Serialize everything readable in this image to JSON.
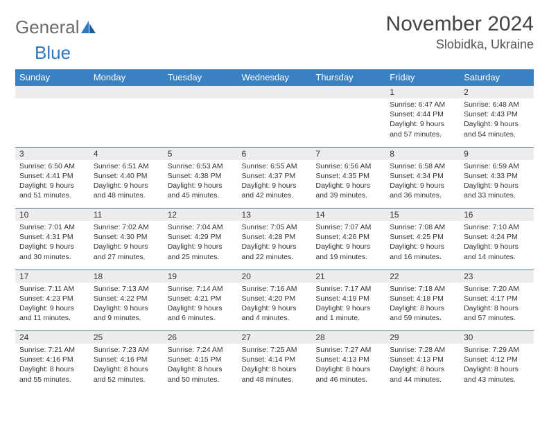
{
  "logo": {
    "text1": "General",
    "text2": "Blue"
  },
  "title": "November 2024",
  "location": "Slobidka, Ukraine",
  "colors": {
    "header_bg": "#3a81c4",
    "header_text": "#ffffff",
    "daynum_bg": "#ededed",
    "border": "#5b7a9b",
    "logo_gray": "#6a6a6a",
    "logo_blue": "#2f78c3"
  },
  "weekdays": [
    "Sunday",
    "Monday",
    "Tuesday",
    "Wednesday",
    "Thursday",
    "Friday",
    "Saturday"
  ],
  "weeks": [
    [
      null,
      null,
      null,
      null,
      null,
      {
        "n": "1",
        "sr": "Sunrise: 6:47 AM",
        "ss": "Sunset: 4:44 PM",
        "d1": "Daylight: 9 hours",
        "d2": "and 57 minutes."
      },
      {
        "n": "2",
        "sr": "Sunrise: 6:48 AM",
        "ss": "Sunset: 4:43 PM",
        "d1": "Daylight: 9 hours",
        "d2": "and 54 minutes."
      }
    ],
    [
      {
        "n": "3",
        "sr": "Sunrise: 6:50 AM",
        "ss": "Sunset: 4:41 PM",
        "d1": "Daylight: 9 hours",
        "d2": "and 51 minutes."
      },
      {
        "n": "4",
        "sr": "Sunrise: 6:51 AM",
        "ss": "Sunset: 4:40 PM",
        "d1": "Daylight: 9 hours",
        "d2": "and 48 minutes."
      },
      {
        "n": "5",
        "sr": "Sunrise: 6:53 AM",
        "ss": "Sunset: 4:38 PM",
        "d1": "Daylight: 9 hours",
        "d2": "and 45 minutes."
      },
      {
        "n": "6",
        "sr": "Sunrise: 6:55 AM",
        "ss": "Sunset: 4:37 PM",
        "d1": "Daylight: 9 hours",
        "d2": "and 42 minutes."
      },
      {
        "n": "7",
        "sr": "Sunrise: 6:56 AM",
        "ss": "Sunset: 4:35 PM",
        "d1": "Daylight: 9 hours",
        "d2": "and 39 minutes."
      },
      {
        "n": "8",
        "sr": "Sunrise: 6:58 AM",
        "ss": "Sunset: 4:34 PM",
        "d1": "Daylight: 9 hours",
        "d2": "and 36 minutes."
      },
      {
        "n": "9",
        "sr": "Sunrise: 6:59 AM",
        "ss": "Sunset: 4:33 PM",
        "d1": "Daylight: 9 hours",
        "d2": "and 33 minutes."
      }
    ],
    [
      {
        "n": "10",
        "sr": "Sunrise: 7:01 AM",
        "ss": "Sunset: 4:31 PM",
        "d1": "Daylight: 9 hours",
        "d2": "and 30 minutes."
      },
      {
        "n": "11",
        "sr": "Sunrise: 7:02 AM",
        "ss": "Sunset: 4:30 PM",
        "d1": "Daylight: 9 hours",
        "d2": "and 27 minutes."
      },
      {
        "n": "12",
        "sr": "Sunrise: 7:04 AM",
        "ss": "Sunset: 4:29 PM",
        "d1": "Daylight: 9 hours",
        "d2": "and 25 minutes."
      },
      {
        "n": "13",
        "sr": "Sunrise: 7:05 AM",
        "ss": "Sunset: 4:28 PM",
        "d1": "Daylight: 9 hours",
        "d2": "and 22 minutes."
      },
      {
        "n": "14",
        "sr": "Sunrise: 7:07 AM",
        "ss": "Sunset: 4:26 PM",
        "d1": "Daylight: 9 hours",
        "d2": "and 19 minutes."
      },
      {
        "n": "15",
        "sr": "Sunrise: 7:08 AM",
        "ss": "Sunset: 4:25 PM",
        "d1": "Daylight: 9 hours",
        "d2": "and 16 minutes."
      },
      {
        "n": "16",
        "sr": "Sunrise: 7:10 AM",
        "ss": "Sunset: 4:24 PM",
        "d1": "Daylight: 9 hours",
        "d2": "and 14 minutes."
      }
    ],
    [
      {
        "n": "17",
        "sr": "Sunrise: 7:11 AM",
        "ss": "Sunset: 4:23 PM",
        "d1": "Daylight: 9 hours",
        "d2": "and 11 minutes."
      },
      {
        "n": "18",
        "sr": "Sunrise: 7:13 AM",
        "ss": "Sunset: 4:22 PM",
        "d1": "Daylight: 9 hours",
        "d2": "and 9 minutes."
      },
      {
        "n": "19",
        "sr": "Sunrise: 7:14 AM",
        "ss": "Sunset: 4:21 PM",
        "d1": "Daylight: 9 hours",
        "d2": "and 6 minutes."
      },
      {
        "n": "20",
        "sr": "Sunrise: 7:16 AM",
        "ss": "Sunset: 4:20 PM",
        "d1": "Daylight: 9 hours",
        "d2": "and 4 minutes."
      },
      {
        "n": "21",
        "sr": "Sunrise: 7:17 AM",
        "ss": "Sunset: 4:19 PM",
        "d1": "Daylight: 9 hours",
        "d2": "and 1 minute."
      },
      {
        "n": "22",
        "sr": "Sunrise: 7:18 AM",
        "ss": "Sunset: 4:18 PM",
        "d1": "Daylight: 8 hours",
        "d2": "and 59 minutes."
      },
      {
        "n": "23",
        "sr": "Sunrise: 7:20 AM",
        "ss": "Sunset: 4:17 PM",
        "d1": "Daylight: 8 hours",
        "d2": "and 57 minutes."
      }
    ],
    [
      {
        "n": "24",
        "sr": "Sunrise: 7:21 AM",
        "ss": "Sunset: 4:16 PM",
        "d1": "Daylight: 8 hours",
        "d2": "and 55 minutes."
      },
      {
        "n": "25",
        "sr": "Sunrise: 7:23 AM",
        "ss": "Sunset: 4:16 PM",
        "d1": "Daylight: 8 hours",
        "d2": "and 52 minutes."
      },
      {
        "n": "26",
        "sr": "Sunrise: 7:24 AM",
        "ss": "Sunset: 4:15 PM",
        "d1": "Daylight: 8 hours",
        "d2": "and 50 minutes."
      },
      {
        "n": "27",
        "sr": "Sunrise: 7:25 AM",
        "ss": "Sunset: 4:14 PM",
        "d1": "Daylight: 8 hours",
        "d2": "and 48 minutes."
      },
      {
        "n": "28",
        "sr": "Sunrise: 7:27 AM",
        "ss": "Sunset: 4:13 PM",
        "d1": "Daylight: 8 hours",
        "d2": "and 46 minutes."
      },
      {
        "n": "29",
        "sr": "Sunrise: 7:28 AM",
        "ss": "Sunset: 4:13 PM",
        "d1": "Daylight: 8 hours",
        "d2": "and 44 minutes."
      },
      {
        "n": "30",
        "sr": "Sunrise: 7:29 AM",
        "ss": "Sunset: 4:12 PM",
        "d1": "Daylight: 8 hours",
        "d2": "and 43 minutes."
      }
    ]
  ]
}
